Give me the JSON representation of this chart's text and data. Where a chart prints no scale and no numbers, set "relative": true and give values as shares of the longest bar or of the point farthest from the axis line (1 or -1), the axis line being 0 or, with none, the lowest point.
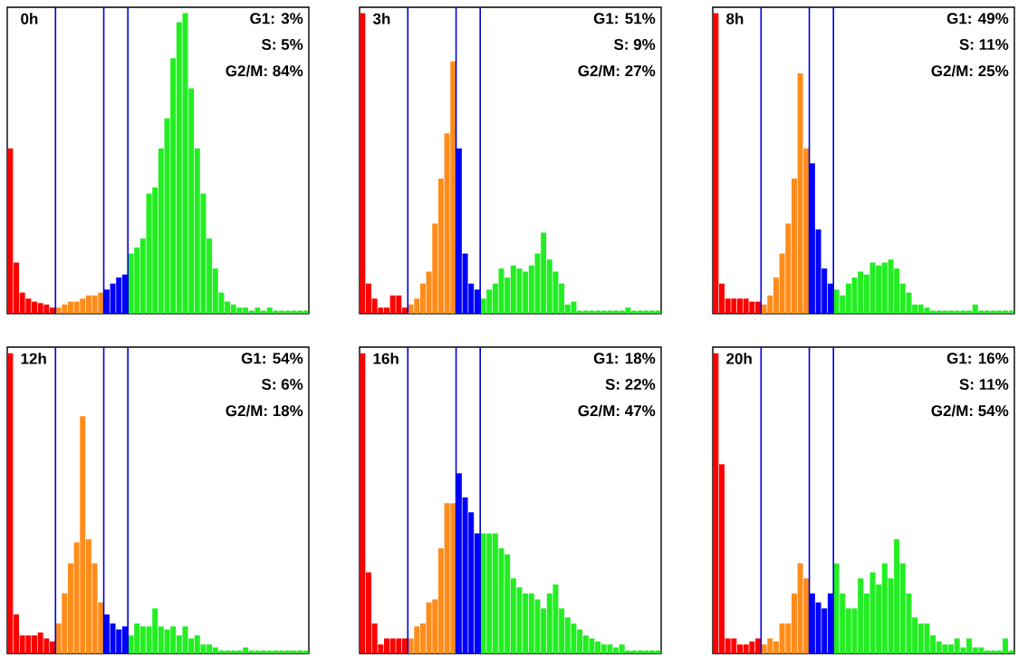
{
  "chart_data": [
    {
      "type": "bar",
      "relative": true,
      "categories": [
        null,
        null,
        null,
        null,
        null,
        null,
        null,
        null,
        null,
        null,
        null,
        null,
        null,
        null,
        null,
        null,
        null,
        null,
        null,
        null,
        null,
        null,
        null,
        null,
        null,
        null,
        null,
        null,
        null,
        null,
        null,
        null,
        null,
        null,
        null,
        null,
        null,
        null,
        null,
        null,
        null,
        null,
        null,
        null,
        null,
        null,
        null,
        null,
        null,
        null
      ],
      "values": [
        0.55,
        0.17,
        0.07,
        0.05,
        0.04,
        0.035,
        0.03,
        0.02,
        0.02,
        0.03,
        0.04,
        0.04,
        0.05,
        0.06,
        0.06,
        0.07,
        0.08,
        0.1,
        0.12,
        0.13,
        0.2,
        0.22,
        0.25,
        0.4,
        0.42,
        0.55,
        0.65,
        0.85,
        0.97,
        1.0,
        0.75,
        0.55,
        0.4,
        0.25,
        0.15,
        0.07,
        0.04,
        0.03,
        0.02,
        0.02,
        0.01,
        0.02,
        0.01,
        0.02,
        0.01,
        0.01,
        0.01,
        0.01,
        0.01,
        0.01
      ],
      "colors": [
        "#ff0000",
        "#ff0000",
        "#ff0000",
        "#ff0000",
        "#ff0000",
        "#ff0000",
        "#ff0000",
        "#ff0000",
        "#ff8c1a",
        "#ff8c1a",
        "#ff8c1a",
        "#ff8c1a",
        "#ff8c1a",
        "#ff8c1a",
        "#ff8c1a",
        "#ff8c1a",
        "#0000ff",
        "#0000ff",
        "#0000ff",
        "#0000ff",
        "#22ee22",
        "#22ee22",
        "#22ee22",
        "#22ee22",
        "#22ee22",
        "#22ee22",
        "#22ee22",
        "#22ee22",
        "#22ee22",
        "#22ee22",
        "#22ee22",
        "#22ee22",
        "#22ee22",
        "#22ee22",
        "#22ee22",
        "#22ee22",
        "#22ee22",
        "#22ee22",
        "#22ee22",
        "#22ee22",
        "#22ee22",
        "#22ee22",
        "#22ee22",
        "#22ee22",
        "#22ee22",
        "#22ee22",
        "#22ee22",
        "#22ee22",
        "#22ee22",
        "#22ee22"
      ],
      "annotations": [
        "0h",
        "G1:  3%",
        "S:  5%",
        "G2/M: 84%"
      ]
    },
    {
      "type": "bar",
      "relative": true,
      "categories": [
        null,
        null,
        null,
        null,
        null,
        null,
        null,
        null,
        null,
        null,
        null,
        null,
        null,
        null,
        null,
        null,
        null,
        null,
        null,
        null,
        null,
        null,
        null,
        null,
        null,
        null,
        null,
        null,
        null,
        null,
        null,
        null,
        null,
        null,
        null,
        null,
        null,
        null,
        null,
        null,
        null,
        null,
        null,
        null,
        null,
        null,
        null,
        null,
        null,
        null
      ],
      "values": [
        1.0,
        0.1,
        0.05,
        0.02,
        0.02,
        0.06,
        0.06,
        0.02,
        0.03,
        0.05,
        0.1,
        0.14,
        0.3,
        0.45,
        0.6,
        0.84,
        0.55,
        0.2,
        0.1,
        0.08,
        0.05,
        0.08,
        0.1,
        0.15,
        0.12,
        0.16,
        0.15,
        0.14,
        0.16,
        0.2,
        0.27,
        0.18,
        0.14,
        0.1,
        0.03,
        0.04,
        0.01,
        0.01,
        0.01,
        0.01,
        0.01,
        0.01,
        0.01,
        0.01,
        0.02,
        0.01,
        0.01,
        0.01,
        0.01,
        0.01
      ],
      "colors": [
        "#ff0000",
        "#ff0000",
        "#ff0000",
        "#ff0000",
        "#ff0000",
        "#ff0000",
        "#ff0000",
        "#ff0000",
        "#ff8c1a",
        "#ff8c1a",
        "#ff8c1a",
        "#ff8c1a",
        "#ff8c1a",
        "#ff8c1a",
        "#ff8c1a",
        "#ff8c1a",
        "#0000ff",
        "#0000ff",
        "#0000ff",
        "#0000ff",
        "#22ee22",
        "#22ee22",
        "#22ee22",
        "#22ee22",
        "#22ee22",
        "#22ee22",
        "#22ee22",
        "#22ee22",
        "#22ee22",
        "#22ee22",
        "#22ee22",
        "#22ee22",
        "#22ee22",
        "#22ee22",
        "#22ee22",
        "#22ee22",
        "#22ee22",
        "#22ee22",
        "#22ee22",
        "#22ee22",
        "#22ee22",
        "#22ee22",
        "#22ee22",
        "#22ee22",
        "#22ee22",
        "#22ee22",
        "#22ee22",
        "#22ee22",
        "#22ee22",
        "#22ee22"
      ],
      "annotations": [
        "3h",
        "G1:  51%",
        "S:  9%",
        "G2/M: 27%"
      ]
    },
    {
      "type": "bar",
      "relative": true,
      "categories": [
        null,
        null,
        null,
        null,
        null,
        null,
        null,
        null,
        null,
        null,
        null,
        null,
        null,
        null,
        null,
        null,
        null,
        null,
        null,
        null,
        null,
        null,
        null,
        null,
        null,
        null,
        null,
        null,
        null,
        null,
        null,
        null,
        null,
        null,
        null,
        null,
        null,
        null,
        null,
        null,
        null,
        null,
        null,
        null,
        null,
        null,
        null,
        null,
        null,
        null
      ],
      "values": [
        1.0,
        0.1,
        0.05,
        0.05,
        0.05,
        0.05,
        0.04,
        0.04,
        0.03,
        0.06,
        0.12,
        0.2,
        0.3,
        0.45,
        0.8,
        0.55,
        0.5,
        0.28,
        0.15,
        0.1,
        0.08,
        0.06,
        0.1,
        0.12,
        0.14,
        0.13,
        0.17,
        0.16,
        0.17,
        0.18,
        0.15,
        0.1,
        0.07,
        0.03,
        0.03,
        0.02,
        0.01,
        0.01,
        0.01,
        0.01,
        0.01,
        0.01,
        0.01,
        0.03,
        0.01,
        0.01,
        0.01,
        0.01,
        0.01,
        0.01
      ],
      "colors": [
        "#ff0000",
        "#ff0000",
        "#ff0000",
        "#ff0000",
        "#ff0000",
        "#ff0000",
        "#ff0000",
        "#ff0000",
        "#ff8c1a",
        "#ff8c1a",
        "#ff8c1a",
        "#ff8c1a",
        "#ff8c1a",
        "#ff8c1a",
        "#ff8c1a",
        "#ff8c1a",
        "#0000ff",
        "#0000ff",
        "#0000ff",
        "#0000ff",
        "#22ee22",
        "#22ee22",
        "#22ee22",
        "#22ee22",
        "#22ee22",
        "#22ee22",
        "#22ee22",
        "#22ee22",
        "#22ee22",
        "#22ee22",
        "#22ee22",
        "#22ee22",
        "#22ee22",
        "#22ee22",
        "#22ee22",
        "#22ee22",
        "#22ee22",
        "#22ee22",
        "#22ee22",
        "#22ee22",
        "#22ee22",
        "#22ee22",
        "#22ee22",
        "#22ee22",
        "#22ee22",
        "#22ee22",
        "#22ee22",
        "#22ee22",
        "#22ee22",
        "#22ee22"
      ],
      "annotations": [
        "8h",
        "G1:  49%",
        "S:  11%",
        "G2/M: 25%"
      ]
    },
    {
      "type": "bar",
      "relative": true,
      "categories": [
        null,
        null,
        null,
        null,
        null,
        null,
        null,
        null,
        null,
        null,
        null,
        null,
        null,
        null,
        null,
        null,
        null,
        null,
        null,
        null,
        null,
        null,
        null,
        null,
        null,
        null,
        null,
        null,
        null,
        null,
        null,
        null,
        null,
        null,
        null,
        null,
        null,
        null,
        null,
        null,
        null,
        null,
        null,
        null,
        null,
        null,
        null,
        null,
        null,
        null
      ],
      "values": [
        1.0,
        0.13,
        0.06,
        0.06,
        0.06,
        0.07,
        0.05,
        0.04,
        0.1,
        0.2,
        0.3,
        0.37,
        0.79,
        0.38,
        0.3,
        0.17,
        0.13,
        0.1,
        0.08,
        0.09,
        0.06,
        0.1,
        0.09,
        0.09,
        0.15,
        0.09,
        0.08,
        0.09,
        0.06,
        0.09,
        0.05,
        0.06,
        0.03,
        0.03,
        0.02,
        0.01,
        0.01,
        0.01,
        0.01,
        0.02,
        0.01,
        0.01,
        0.01,
        0.01,
        0.01,
        0.01,
        0.01,
        0.01,
        0.01,
        0.01
      ],
      "colors": [
        "#ff0000",
        "#ff0000",
        "#ff0000",
        "#ff0000",
        "#ff0000",
        "#ff0000",
        "#ff0000",
        "#ff0000",
        "#ff8c1a",
        "#ff8c1a",
        "#ff8c1a",
        "#ff8c1a",
        "#ff8c1a",
        "#ff8c1a",
        "#ff8c1a",
        "#ff8c1a",
        "#0000ff",
        "#0000ff",
        "#0000ff",
        "#0000ff",
        "#22ee22",
        "#22ee22",
        "#22ee22",
        "#22ee22",
        "#22ee22",
        "#22ee22",
        "#22ee22",
        "#22ee22",
        "#22ee22",
        "#22ee22",
        "#22ee22",
        "#22ee22",
        "#22ee22",
        "#22ee22",
        "#22ee22",
        "#22ee22",
        "#22ee22",
        "#22ee22",
        "#22ee22",
        "#22ee22",
        "#22ee22",
        "#22ee22",
        "#22ee22",
        "#22ee22",
        "#22ee22",
        "#22ee22",
        "#22ee22",
        "#22ee22",
        "#22ee22",
        "#22ee22"
      ],
      "annotations": [
        "12h",
        "G1:  54%",
        "S:  6%",
        "G2/M: 18%"
      ]
    },
    {
      "type": "bar",
      "relative": true,
      "categories": [
        null,
        null,
        null,
        null,
        null,
        null,
        null,
        null,
        null,
        null,
        null,
        null,
        null,
        null,
        null,
        null,
        null,
        null,
        null,
        null,
        null,
        null,
        null,
        null,
        null,
        null,
        null,
        null,
        null,
        null,
        null,
        null,
        null,
        null,
        null,
        null,
        null,
        null,
        null,
        null,
        null,
        null,
        null,
        null,
        null,
        null,
        null,
        null,
        null,
        null
      ],
      "values": [
        1.0,
        0.27,
        0.1,
        0.03,
        0.05,
        0.05,
        0.05,
        0.05,
        0.05,
        0.09,
        0.1,
        0.17,
        0.18,
        0.35,
        0.5,
        0.5,
        0.6,
        0.52,
        0.47,
        0.4,
        0.4,
        0.4,
        0.4,
        0.35,
        0.33,
        0.25,
        0.22,
        0.2,
        0.2,
        0.18,
        0.15,
        0.2,
        0.23,
        0.15,
        0.12,
        0.1,
        0.08,
        0.06,
        0.05,
        0.04,
        0.03,
        0.03,
        0.02,
        0.03,
        0.01,
        0.01,
        0.01,
        0.01,
        0.01,
        0.01
      ],
      "colors": [
        "#ff0000",
        "#ff0000",
        "#ff0000",
        "#ff0000",
        "#ff0000",
        "#ff0000",
        "#ff0000",
        "#ff0000",
        "#ff8c1a",
        "#ff8c1a",
        "#ff8c1a",
        "#ff8c1a",
        "#ff8c1a",
        "#ff8c1a",
        "#ff8c1a",
        "#ff8c1a",
        "#0000ff",
        "#0000ff",
        "#0000ff",
        "#0000ff",
        "#22ee22",
        "#22ee22",
        "#22ee22",
        "#22ee22",
        "#22ee22",
        "#22ee22",
        "#22ee22",
        "#22ee22",
        "#22ee22",
        "#22ee22",
        "#22ee22",
        "#22ee22",
        "#22ee22",
        "#22ee22",
        "#22ee22",
        "#22ee22",
        "#22ee22",
        "#22ee22",
        "#22ee22",
        "#22ee22",
        "#22ee22",
        "#22ee22",
        "#22ee22",
        "#22ee22",
        "#22ee22",
        "#22ee22",
        "#22ee22",
        "#22ee22",
        "#22ee22",
        "#22ee22"
      ],
      "annotations": [
        "16h",
        "G1:  18%",
        "S:  22%",
        "G2/M: 47%"
      ]
    },
    {
      "type": "bar",
      "relative": true,
      "categories": [
        null,
        null,
        null,
        null,
        null,
        null,
        null,
        null,
        null,
        null,
        null,
        null,
        null,
        null,
        null,
        null,
        null,
        null,
        null,
        null,
        null,
        null,
        null,
        null,
        null,
        null,
        null,
        null,
        null,
        null,
        null,
        null,
        null,
        null,
        null,
        null,
        null,
        null,
        null,
        null,
        null,
        null,
        null,
        null,
        null,
        null,
        null,
        null,
        null,
        null
      ],
      "values": [
        1.0,
        0.63,
        0.05,
        0.05,
        0.03,
        0.03,
        0.04,
        0.05,
        0.03,
        0.05,
        0.04,
        0.1,
        0.1,
        0.2,
        0.3,
        0.25,
        0.2,
        0.17,
        0.15,
        0.2,
        0.3,
        0.2,
        0.15,
        0.15,
        0.25,
        0.2,
        0.27,
        0.23,
        0.3,
        0.25,
        0.38,
        0.3,
        0.2,
        0.12,
        0.1,
        0.1,
        0.06,
        0.04,
        0.03,
        0.03,
        0.05,
        0.02,
        0.05,
        0.02,
        0.02,
        0.01,
        0.01,
        0.01,
        0.05,
        0.01
      ],
      "colors": [
        "#ff0000",
        "#ff0000",
        "#ff0000",
        "#ff0000",
        "#ff0000",
        "#ff0000",
        "#ff0000",
        "#ff0000",
        "#ff8c1a",
        "#ff8c1a",
        "#ff8c1a",
        "#ff8c1a",
        "#ff8c1a",
        "#ff8c1a",
        "#ff8c1a",
        "#ff8c1a",
        "#0000ff",
        "#0000ff",
        "#0000ff",
        "#0000ff",
        "#22ee22",
        "#22ee22",
        "#22ee22",
        "#22ee22",
        "#22ee22",
        "#22ee22",
        "#22ee22",
        "#22ee22",
        "#22ee22",
        "#22ee22",
        "#22ee22",
        "#22ee22",
        "#22ee22",
        "#22ee22",
        "#22ee22",
        "#22ee22",
        "#22ee22",
        "#22ee22",
        "#22ee22",
        "#22ee22",
        "#22ee22",
        "#22ee22",
        "#22ee22",
        "#22ee22",
        "#22ee22",
        "#22ee22",
        "#22ee22",
        "#22ee22",
        "#22ee22",
        "#22ee22"
      ],
      "annotations": [
        "20h",
        "G1:  16%",
        "S:  11%",
        "G2/M: 54%"
      ]
    }
  ]
}
